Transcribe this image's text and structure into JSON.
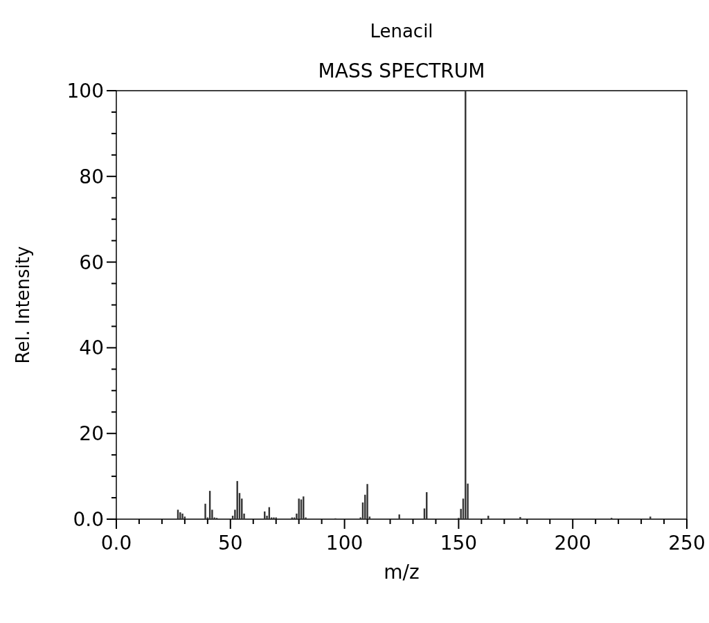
{
  "chart_data": {
    "type": "bar",
    "title": "Lenacil",
    "subtitle": "MASS SPECTRUM",
    "xlabel": "m/z",
    "ylabel": "Rel. Intensity",
    "x": [
      27,
      28,
      29,
      30,
      39,
      40,
      41,
      42,
      43,
      44,
      51,
      52,
      53,
      54,
      55,
      56,
      65,
      66,
      67,
      68,
      69,
      70,
      77,
      78,
      79,
      80,
      81,
      82,
      83,
      96,
      107,
      108,
      109,
      110,
      111,
      124,
      135,
      136,
      150,
      151,
      152,
      153,
      154,
      163,
      177,
      217,
      234
    ],
    "series": [
      {
        "color": "#333333",
        "values": [
          2.2,
          1.6,
          1.3,
          0.6,
          3.6,
          0.4,
          6.6,
          2.2,
          0.4,
          0.3,
          0.8,
          2.2,
          8.9,
          6.1,
          4.8,
          1.3,
          1.8,
          0.8,
          2.8,
          0.4,
          0.4,
          0.4,
          0.4,
          0.4,
          1.3,
          4.8,
          4.6,
          5.3,
          0.4,
          0.2,
          0.4,
          3.9,
          5.7,
          8.2,
          0.6,
          1.1,
          2.5,
          6.3,
          0.3,
          2.4,
          4.8,
          100,
          8.3,
          0.8,
          0.5,
          0.3,
          0.6
        ]
      }
    ],
    "xlim": [
      0,
      250
    ],
    "xticks": [
      {
        "value": 0,
        "label": "0.0"
      },
      {
        "value": 10,
        "label": null
      },
      {
        "value": 20,
        "label": null
      },
      {
        "value": 30,
        "label": null
      },
      {
        "value": 40,
        "label": null
      },
      50,
      {
        "value": 60,
        "label": null
      },
      {
        "value": 70,
        "label": null
      },
      {
        "value": 80,
        "label": null
      },
      {
        "value": 90,
        "label": null
      },
      100,
      {
        "value": 110,
        "label": null
      },
      {
        "value": 120,
        "label": null
      },
      {
        "value": 130,
        "label": null
      },
      {
        "value": 140,
        "label": null
      },
      150,
      {
        "value": 160,
        "label": null
      },
      {
        "value": 170,
        "label": null
      },
      {
        "value": 180,
        "label": null
      },
      {
        "value": 190,
        "label": null
      },
      200,
      {
        "value": 210,
        "label": null
      },
      {
        "value": 220,
        "label": null
      },
      {
        "value": 230,
        "label": null
      },
      {
        "value": 240,
        "label": null
      },
      250
    ],
    "ylim": [
      0,
      100
    ],
    "yticks": [
      {
        "value": 0,
        "label": "0.0"
      },
      {
        "value": 5,
        "label": null
      },
      {
        "value": 10,
        "label": null
      },
      {
        "value": 15,
        "label": null
      },
      20,
      {
        "value": 25,
        "label": null
      },
      {
        "value": 30,
        "label": null
      },
      {
        "value": 35,
        "label": null
      },
      40,
      {
        "value": 45,
        "label": null
      },
      {
        "value": 50,
        "label": null
      },
      {
        "value": 55,
        "label": null
      },
      60,
      {
        "value": 65,
        "label": null
      },
      {
        "value": 70,
        "label": null
      },
      {
        "value": 75,
        "label": null
      },
      80,
      {
        "value": 85,
        "label": null
      },
      {
        "value": 90,
        "label": null
      },
      {
        "value": 95,
        "label": null
      },
      100
    ],
    "grid": false
  }
}
